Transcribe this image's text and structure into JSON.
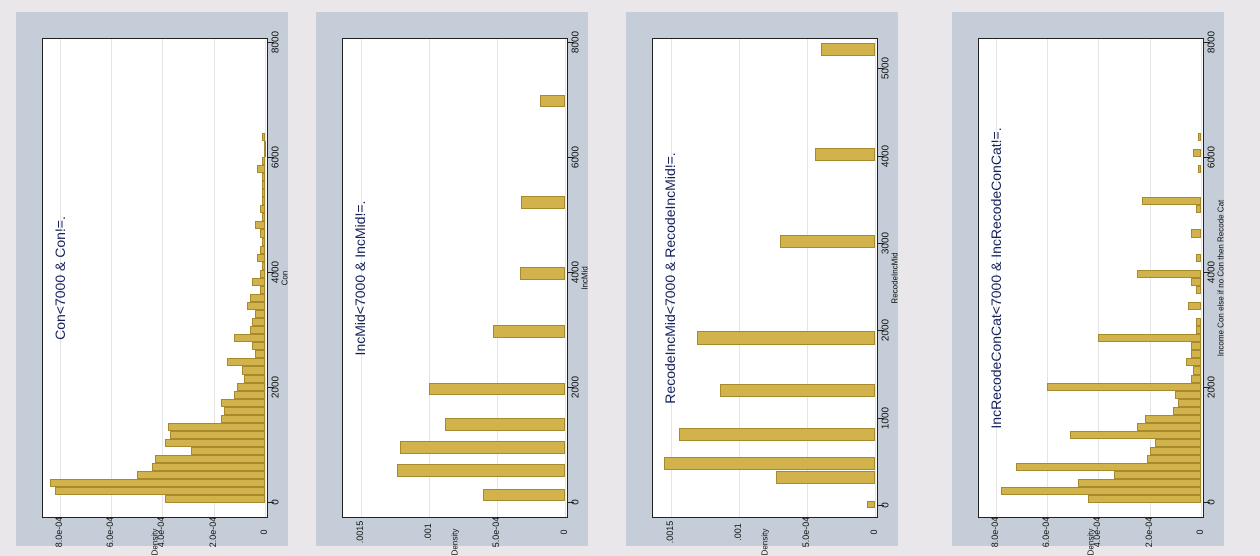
{
  "chart_data": [
    {
      "type": "bar",
      "title": "Con<7000 & Con!=.",
      "xlabel": "Con",
      "ylabel": "Density",
      "xlim": [
        -200,
        8000
      ],
      "ylim": [
        0,
        0.00085
      ],
      "xticks": [
        0,
        2000,
        4000,
        6000,
        8000
      ],
      "yticks": [
        0,
        0.0002,
        0.0004,
        0.0006,
        0.0008
      ],
      "ytick_labels": [
        "0",
        "2.0e-04",
        "4.0e-04",
        "6.0e-04",
        "8.0e-04"
      ],
      "bins": [
        {
          "x0": 0,
          "x1": 140,
          "y": 0.00039
        },
        {
          "x0": 140,
          "x1": 280,
          "y": 0.00082
        },
        {
          "x0": 280,
          "x1": 420,
          "y": 0.00084
        },
        {
          "x0": 420,
          "x1": 560,
          "y": 0.0005
        },
        {
          "x0": 560,
          "x1": 700,
          "y": 0.00044
        },
        {
          "x0": 700,
          "x1": 840,
          "y": 0.00043
        },
        {
          "x0": 840,
          "x1": 980,
          "y": 0.00029
        },
        {
          "x0": 980,
          "x1": 1120,
          "y": 0.00039
        },
        {
          "x0": 1120,
          "x1": 1260,
          "y": 0.00037
        },
        {
          "x0": 1260,
          "x1": 1400,
          "y": 0.00038
        },
        {
          "x0": 1400,
          "x1": 1540,
          "y": 0.00017
        },
        {
          "x0": 1540,
          "x1": 1680,
          "y": 0.00016
        },
        {
          "x0": 1680,
          "x1": 1820,
          "y": 0.00017
        },
        {
          "x0": 1820,
          "x1": 1960,
          "y": 0.00012
        },
        {
          "x0": 1960,
          "x1": 2100,
          "y": 0.00011
        },
        {
          "x0": 2100,
          "x1": 2240,
          "y": 8e-05
        },
        {
          "x0": 2240,
          "x1": 2380,
          "y": 9e-05
        },
        {
          "x0": 2380,
          "x1": 2520,
          "y": 0.00015
        },
        {
          "x0": 2520,
          "x1": 2660,
          "y": 4e-05
        },
        {
          "x0": 2660,
          "x1": 2800,
          "y": 5e-05
        },
        {
          "x0": 2800,
          "x1": 2940,
          "y": 0.00012
        },
        {
          "x0": 2940,
          "x1": 3080,
          "y": 6e-05
        },
        {
          "x0": 3080,
          "x1": 3220,
          "y": 5e-05
        },
        {
          "x0": 3220,
          "x1": 3360,
          "y": 4e-05
        },
        {
          "x0": 3360,
          "x1": 3500,
          "y": 7e-05
        },
        {
          "x0": 3500,
          "x1": 3640,
          "y": 6e-05
        },
        {
          "x0": 3640,
          "x1": 3780,
          "y": 2e-05
        },
        {
          "x0": 3780,
          "x1": 3920,
          "y": 5e-05
        },
        {
          "x0": 3920,
          "x1": 4060,
          "y": 2e-05
        },
        {
          "x0": 4060,
          "x1": 4200,
          "y": 1e-05
        },
        {
          "x0": 4200,
          "x1": 4340,
          "y": 3e-05
        },
        {
          "x0": 4340,
          "x1": 4480,
          "y": 2e-05
        },
        {
          "x0": 4480,
          "x1": 4620,
          "y": 1e-05
        },
        {
          "x0": 4620,
          "x1": 4760,
          "y": 2e-05
        },
        {
          "x0": 4760,
          "x1": 4900,
          "y": 4e-05
        },
        {
          "x0": 4900,
          "x1": 5040,
          "y": 1e-05
        },
        {
          "x0": 5040,
          "x1": 5180,
          "y": 2e-05
        },
        {
          "x0": 5180,
          "x1": 5320,
          "y": 1e-05
        },
        {
          "x0": 5320,
          "x1": 5460,
          "y": 1e-05
        },
        {
          "x0": 5460,
          "x1": 5600,
          "y": 1e-05
        },
        {
          "x0": 5600,
          "x1": 5740,
          "y": 1e-05
        },
        {
          "x0": 5740,
          "x1": 5880,
          "y": 3e-05
        },
        {
          "x0": 5880,
          "x1": 6020,
          "y": 1e-05
        },
        {
          "x0": 6020,
          "x1": 6160,
          "y": 5e-06
        },
        {
          "x0": 6160,
          "x1": 6300,
          "y": 5e-06
        },
        {
          "x0": 6300,
          "x1": 6440,
          "y": 1e-05
        }
      ]
    },
    {
      "type": "bar",
      "title": "IncMid<7000 & IncMid!=.",
      "xlabel": "IncMid",
      "ylabel": "Density",
      "xlim": [
        -200,
        8000
      ],
      "ylim": [
        0,
        0.0016
      ],
      "xticks": [
        0,
        2000,
        4000,
        6000,
        8000
      ],
      "yticks": [
        0,
        0.0005,
        0.001,
        0.0015
      ],
      "ytick_labels": [
        "0",
        "5.0e-04",
        ".001",
        ".0015"
      ],
      "bins": [
        {
          "x0": 50,
          "x1": 250,
          "y": 0.0006
        },
        {
          "x0": 460,
          "x1": 680,
          "y": 0.00123
        },
        {
          "x0": 860,
          "x1": 1080,
          "y": 0.00121
        },
        {
          "x0": 1260,
          "x1": 1480,
          "y": 0.00088
        },
        {
          "x0": 1880,
          "x1": 2100,
          "y": 0.001
        },
        {
          "x0": 2880,
          "x1": 3100,
          "y": 0.00053
        },
        {
          "x0": 3880,
          "x1": 4100,
          "y": 0.00033
        },
        {
          "x0": 5120,
          "x1": 5340,
          "y": 0.00032
        },
        {
          "x0": 6880,
          "x1": 7100,
          "y": 0.00018
        }
      ]
    },
    {
      "type": "bar",
      "title": "RecodeIncMid<7000 & RecodeIncMid!=.",
      "xlabel": "RecodeIncMid",
      "ylabel": "Density",
      "xlim": [
        -100,
        5300
      ],
      "ylim": [
        0,
        0.0016
      ],
      "xticks": [
        0,
        1000,
        2000,
        3000,
        4000,
        5000
      ],
      "yticks": [
        0,
        0.0005,
        0.001,
        0.0015
      ],
      "ytick_labels": [
        "0",
        "5.0e-04",
        ".001",
        ".0015"
      ],
      "bins": [
        {
          "x0": -20,
          "x1": 60,
          "y": 6e-05
        },
        {
          "x0": 250,
          "x1": 400,
          "y": 0.00073
        },
        {
          "x0": 410,
          "x1": 560,
          "y": 0.00155
        },
        {
          "x0": 750,
          "x1": 900,
          "y": 0.00144
        },
        {
          "x0": 1250,
          "x1": 1400,
          "y": 0.00114
        },
        {
          "x0": 1850,
          "x1": 2000,
          "y": 0.00131
        },
        {
          "x0": 2950,
          "x1": 3100,
          "y": 0.0007
        },
        {
          "x0": 3950,
          "x1": 4100,
          "y": 0.00044
        },
        {
          "x0": 5150,
          "x1": 5300,
          "y": 0.0004
        }
      ]
    },
    {
      "type": "bar",
      "title": "IncRecodeConCat<7000 &  IncRecodeConCat!=.",
      "xlabel": "Income Con else if no Con then Recode Cat",
      "ylabel": "Density",
      "xlim": [
        -200,
        8000
      ],
      "ylim": [
        0,
        0.00085
      ],
      "xticks": [
        0,
        2000,
        4000,
        6000,
        8000
      ],
      "yticks": [
        0,
        0.0002,
        0.0004,
        0.0006,
        0.0008
      ],
      "ytick_labels": [
        "0",
        "2.0e-04",
        "4.0e-04",
        "6.0e-04",
        "8.0e-04"
      ],
      "bins": [
        {
          "x0": 0,
          "x1": 140,
          "y": 0.00044
        },
        {
          "x0": 140,
          "x1": 280,
          "y": 0.00078
        },
        {
          "x0": 280,
          "x1": 420,
          "y": 0.00048
        },
        {
          "x0": 420,
          "x1": 560,
          "y": 0.00034
        },
        {
          "x0": 560,
          "x1": 700,
          "y": 0.00072
        },
        {
          "x0": 700,
          "x1": 840,
          "y": 0.00021
        },
        {
          "x0": 840,
          "x1": 980,
          "y": 0.0002
        },
        {
          "x0": 980,
          "x1": 1120,
          "y": 0.00018
        },
        {
          "x0": 1120,
          "x1": 1260,
          "y": 0.00051
        },
        {
          "x0": 1260,
          "x1": 1400,
          "y": 0.00025
        },
        {
          "x0": 1400,
          "x1": 1540,
          "y": 0.00022
        },
        {
          "x0": 1540,
          "x1": 1680,
          "y": 0.00011
        },
        {
          "x0": 1680,
          "x1": 1820,
          "y": 9e-05
        },
        {
          "x0": 1820,
          "x1": 1960,
          "y": 0.0001
        },
        {
          "x0": 1960,
          "x1": 2100,
          "y": 0.0006
        },
        {
          "x0": 2100,
          "x1": 2240,
          "y": 4e-05
        },
        {
          "x0": 2240,
          "x1": 2380,
          "y": 3e-05
        },
        {
          "x0": 2380,
          "x1": 2520,
          "y": 6e-05
        },
        {
          "x0": 2520,
          "x1": 2660,
          "y": 4e-05
        },
        {
          "x0": 2660,
          "x1": 2800,
          "y": 4e-05
        },
        {
          "x0": 2800,
          "x1": 2940,
          "y": 0.0004
        },
        {
          "x0": 2940,
          "x1": 3080,
          "y": 2e-05
        },
        {
          "x0": 3080,
          "x1": 3220,
          "y": 2e-05
        },
        {
          "x0": 3360,
          "x1": 3500,
          "y": 5e-05
        },
        {
          "x0": 3640,
          "x1": 3780,
          "y": 2e-05
        },
        {
          "x0": 3780,
          "x1": 3920,
          "y": 4e-05
        },
        {
          "x0": 3920,
          "x1": 4060,
          "y": 0.00025
        },
        {
          "x0": 4200,
          "x1": 4340,
          "y": 2e-05
        },
        {
          "x0": 4620,
          "x1": 4760,
          "y": 4e-05
        },
        {
          "x0": 5040,
          "x1": 5180,
          "y": 2e-05
        },
        {
          "x0": 5180,
          "x1": 5320,
          "y": 0.00023
        },
        {
          "x0": 5740,
          "x1": 5880,
          "y": 1e-05
        },
        {
          "x0": 6020,
          "x1": 6160,
          "y": 3e-05
        },
        {
          "x0": 6300,
          "x1": 6440,
          "y": 1e-05
        }
      ]
    }
  ],
  "colors": {
    "bar_fill": "#d2b24a",
    "bar_edge": "#a88a2e",
    "panel_bg": "#c5ced8",
    "title_color": "#14205a"
  }
}
